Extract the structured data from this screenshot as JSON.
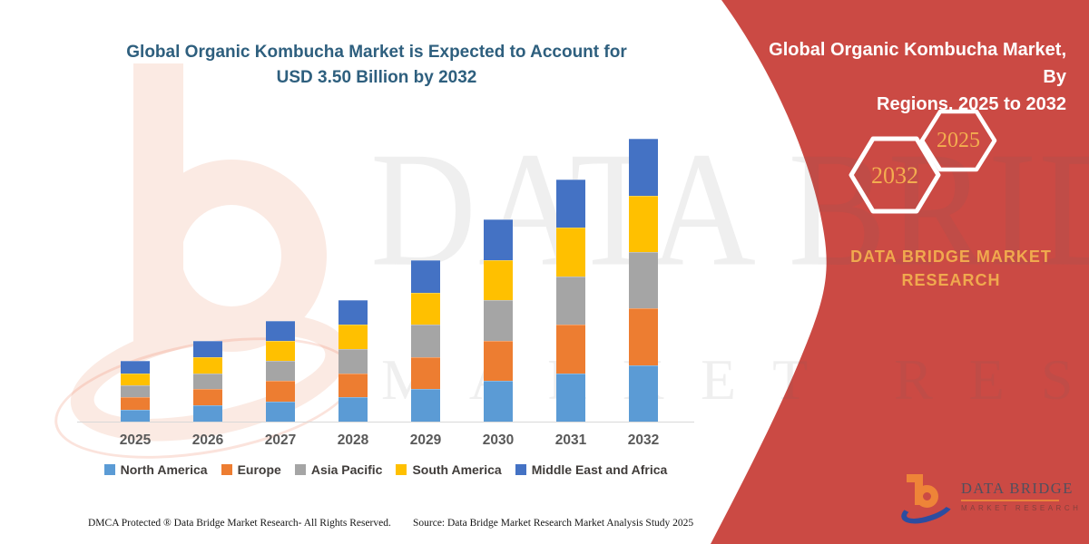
{
  "header": {
    "title_line1": "Global Organic Kombucha Market is Expected to Account for",
    "title_line2": "USD 3.50 Billion by 2032"
  },
  "side_panel": {
    "title_line1": "Global Organic Kombucha Market, By",
    "title_line2": "Regions, 2025 to 2032",
    "hexagons": [
      {
        "label": "2032"
      },
      {
        "label": "2025"
      }
    ],
    "brand_line1": "DATA BRIDGE MARKET",
    "brand_line2": "RESEARCH",
    "panel_color": "#CB4A44",
    "accent_gold": "#F0A94E"
  },
  "watermark": {
    "line1": "DATA BRIDGE",
    "line2": "MARKET RESEARCH"
  },
  "logo": {
    "name": "DATA BRIDGE",
    "subtitle": "MARKET RESEARCH"
  },
  "footer": {
    "left": "DMCA Protected ® Data Bridge Market Research-  All Rights Reserved.",
    "source": "Source: Data Bridge Market Research  Market Analysis Study 2025"
  },
  "chart_data": {
    "type": "bar",
    "stacked": true,
    "title": "Global Organic Kombucha Market is Expected to Account for USD 3.50 Billion by 2032",
    "unit": "USD Billion",
    "categories": [
      "2025",
      "2026",
      "2027",
      "2028",
      "2029",
      "2030",
      "2031",
      "2032"
    ],
    "series": [
      {
        "name": "North America",
        "color": "#5B9BD5",
        "values": [
          0.15,
          0.2,
          0.25,
          0.3,
          0.4,
          0.5,
          0.6,
          0.7
        ]
      },
      {
        "name": "Europe",
        "color": "#ED7D31",
        "values": [
          0.15,
          0.2,
          0.25,
          0.3,
          0.4,
          0.5,
          0.6,
          0.7
        ]
      },
      {
        "name": "Asia Pacific",
        "color": "#A5A5A5",
        "values": [
          0.15,
          0.2,
          0.25,
          0.3,
          0.4,
          0.5,
          0.6,
          0.7
        ]
      },
      {
        "name": "South America",
        "color": "#FFC000",
        "values": [
          0.15,
          0.2,
          0.25,
          0.3,
          0.4,
          0.5,
          0.6,
          0.7
        ]
      },
      {
        "name": "Middle East and Africa",
        "color": "#4472C4",
        "values": [
          0.15,
          0.2,
          0.25,
          0.3,
          0.4,
          0.5,
          0.6,
          0.7
        ]
      }
    ],
    "totals": [
      0.75,
      1.0,
      1.25,
      1.5,
      2.0,
      2.5,
      3.0,
      3.5
    ],
    "xlabel": "",
    "ylabel": "",
    "ylim": [
      0,
      3.66
    ],
    "grid": false,
    "y_axis_visible": false,
    "legend_position": "bottom"
  }
}
